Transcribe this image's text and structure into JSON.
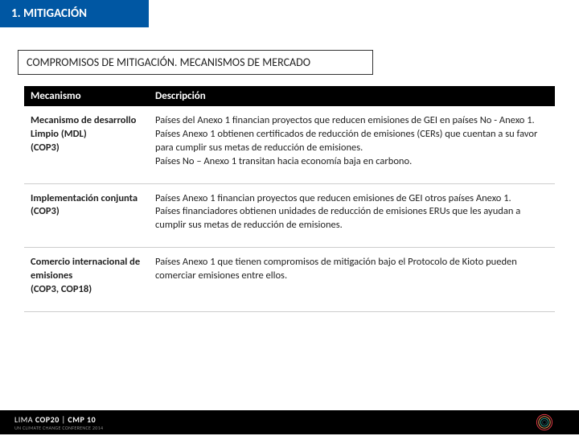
{
  "header": {
    "title": "1. MITIGACIÓN"
  },
  "subtitle": "COMPROMISOS DE MITIGACIÓN. MECANISMOS DE MERCADO",
  "table": {
    "columns": [
      "Mecanismo",
      "Descripción"
    ],
    "rows": [
      {
        "c1": "Mecanismo de desarrollo Limpio (MDL)\n(COP3)",
        "c2": "Países del Anexo 1 financian proyectos que reducen emisiones de GEI en países No -  Anexo 1.\nPaíses Anexo 1 obtienen certificados de reducción de emisiones (CERs) que cuentan a su favor para cumplir sus metas de  reducción de emisiones.\nPaíses No – Anexo 1 transitan hacia economía baja en carbono."
      },
      {
        "c1": "Implementación conjunta\n(COP3)",
        "c2": "Países Anexo 1 financian proyectos que reducen emisiones de GEI otros países Anexo 1.\nPaíses financiadores obtienen unidades de reducción de emisiones ERUs que les ayudan a cumplir sus metas de reducción de emisiones."
      },
      {
        "c1": "Comercio internacional de emisiones\n(COP3, COP18)",
        "c2": "Países Anexo 1 que tienen compromisos de mitigación bajo el Protocolo de Kioto pueden comerciar emisiones entre ellos."
      }
    ]
  },
  "footer": {
    "logo_main": "LIMA COP20 | CMP 10",
    "logo_sub": "UN CLIMATE CHANGE CONFERENCE 2014"
  },
  "colors": {
    "header_bg": "#0057a3",
    "table_header_bg": "#000000",
    "footer_bg": "#000000",
    "border": "#333333",
    "row_divider": "#cccccc"
  }
}
